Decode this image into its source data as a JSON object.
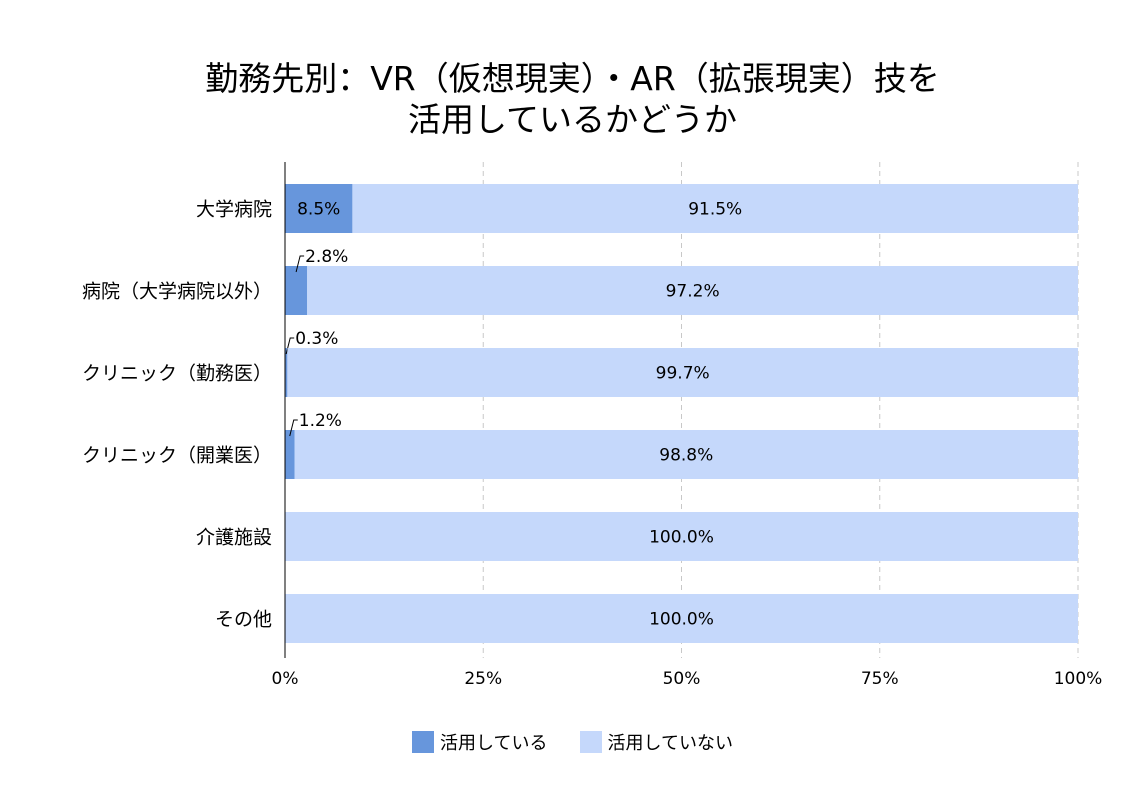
{
  "chart_data": {
    "type": "bar",
    "orientation": "horizontal",
    "stacked": "percent",
    "title_lines": [
      "勤務先別：VR（仮想現実）・AR（拡張現実）技を",
      "活用しているかどうか"
    ],
    "categories": [
      "大学病院",
      "病院（大学病院以外）",
      "クリニック（勤務医）",
      "クリニック（開業医）",
      "介護施設",
      "その他"
    ],
    "series": [
      {
        "name": "活用している",
        "color": "#6796dc",
        "values": [
          8.5,
          2.8,
          0.3,
          1.2,
          0.0,
          0.0
        ],
        "labels": [
          "8.5%",
          "2.8%",
          "0.3%",
          "1.2%",
          "",
          ""
        ]
      },
      {
        "name": "活用していない",
        "color": "#c5d8fb",
        "values": [
          91.5,
          97.2,
          99.7,
          98.8,
          100.0,
          100.0
        ],
        "labels": [
          "91.5%",
          "97.2%",
          "99.7%",
          "98.8%",
          "100.0%",
          "100.0%"
        ]
      }
    ],
    "xlim": [
      0,
      100
    ],
    "x_ticks": [
      0,
      25,
      50,
      75,
      100
    ],
    "x_tick_labels": [
      "0%",
      "25%",
      "50%",
      "75%",
      "100%"
    ],
    "grid": "vertical-dashed",
    "legend_position": "bottom-center"
  }
}
